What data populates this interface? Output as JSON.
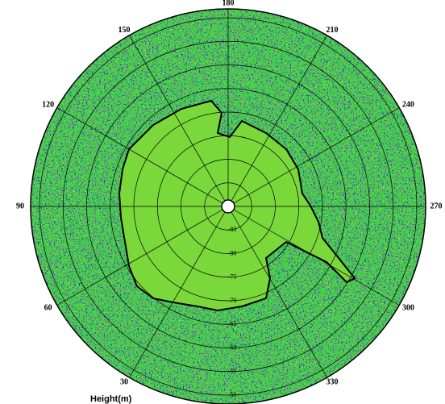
{
  "map": {
    "longitude_labels": [
      180,
      210,
      240,
      270,
      300,
      330,
      30,
      60,
      90,
      120,
      150
    ],
    "latitude_labels": [
      -85,
      -80,
      -75,
      -70,
      -65,
      -60,
      -55,
      -50
    ],
    "colorbar_label": "Height(m)"
  }
}
